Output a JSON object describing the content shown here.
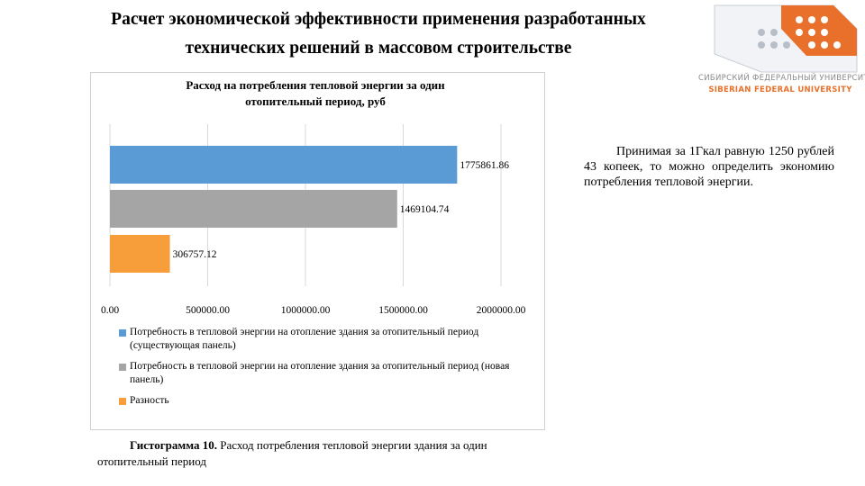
{
  "slide": {
    "title_line1": "Расчет экономической эффективности применения разработанных",
    "title_line2": "технических решений в массовом строительстве"
  },
  "logo": {
    "text_ru": "СИБИРСКИЙ ФЕДЕРАЛЬНЫЙ УНИВЕРСИТЕТ",
    "text_en": "SIBERIAN FEDERAL UNIVERSITY",
    "color_primary": "#e8702a",
    "color_secondary": "#9aa0a6"
  },
  "note": {
    "text": "Принимая за 1Гкал равную 1250 рублей 43 копеек, то можно определить экономию потребления тепловой энергии."
  },
  "caption": {
    "label": "Гистограмма 10.",
    "text": " Расход потребления тепловой энергии здания за один отопительный период"
  },
  "chart_data": {
    "type": "bar",
    "orientation": "horizontal",
    "title_line1": "Расход на потребления тепловой энергии за один",
    "title_line2": "отопительный период, руб",
    "xlim": [
      0,
      2000000
    ],
    "x_ticks": [
      0,
      500000,
      1000000,
      1500000,
      2000000
    ],
    "x_tick_labels": [
      "0.00",
      "500000.00",
      "1000000.00",
      "1500000.00",
      "2000000.00"
    ],
    "grid": true,
    "legend_position": "bottom",
    "series": [
      {
        "name": "Потребность в тепловой энергии на отопление здания за отопительный период (существующая панель)",
        "value": 1775861.86,
        "label": "1775861.86",
        "color": "#5b9bd5"
      },
      {
        "name": "Потребность в тепловой энергии на отопление здания за отопительный период (новая панель)",
        "value": 1469104.74,
        "label": "1469104.74",
        "color": "#a5a5a5"
      },
      {
        "name": "Разность",
        "value": 306757.12,
        "label": "306757.12",
        "color": "#f79e3b"
      }
    ]
  }
}
